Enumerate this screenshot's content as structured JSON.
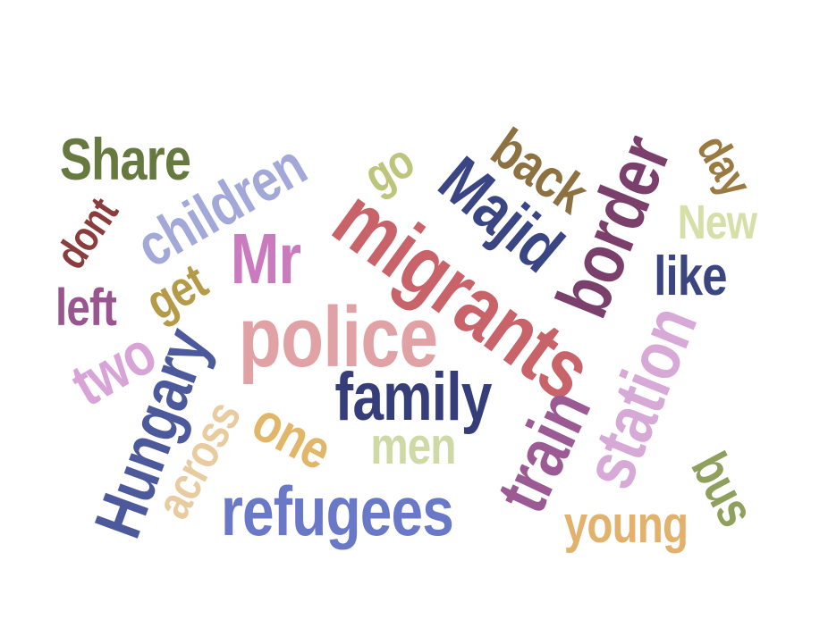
{
  "words": {
    "share": {
      "text": "Share",
      "color": "#66793f"
    },
    "children": {
      "text": "children",
      "color": "#a2a9d9"
    },
    "dont": {
      "text": "dont",
      "color": "#8a3d3d"
    },
    "left": {
      "text": "left",
      "color": "#9a5590"
    },
    "get": {
      "text": "get",
      "color": "#b59a47"
    },
    "mr": {
      "text": "Mr",
      "color": "#c97bbe"
    },
    "two": {
      "text": "two",
      "color": "#d8a3d6"
    },
    "police": {
      "text": "police",
      "color": "#e0a2a5"
    },
    "hungary": {
      "text": "Hungary",
      "color": "#4c5a9c"
    },
    "across": {
      "text": "across",
      "color": "#e8cb9e"
    },
    "one": {
      "text": "one",
      "color": "#e2b668"
    },
    "refugees": {
      "text": "refugees",
      "color": "#6a79c7"
    },
    "family": {
      "text": "family",
      "color": "#363e7a"
    },
    "men": {
      "text": "men",
      "color": "#cfd9a5"
    },
    "go": {
      "text": "go",
      "color": "#bcc57a"
    },
    "majid": {
      "text": "Majid",
      "color": "#3a4583"
    },
    "migrants": {
      "text": "migrants",
      "color": "#c9636a"
    },
    "back": {
      "text": "back",
      "color": "#8e7140"
    },
    "border": {
      "text": "border",
      "color": "#7a3f6a"
    },
    "day": {
      "text": "day",
      "color": "#9a7a40"
    },
    "new": {
      "text": "New",
      "color": "#d6dfa8"
    },
    "like": {
      "text": "like",
      "color": "#3b4580"
    },
    "train": {
      "text": "train",
      "color": "#9c5a94"
    },
    "station": {
      "text": "station",
      "color": "#d7a9d6"
    },
    "bus": {
      "text": "bus",
      "color": "#8ea05c"
    },
    "young": {
      "text": "young",
      "color": "#e2b16b"
    }
  }
}
